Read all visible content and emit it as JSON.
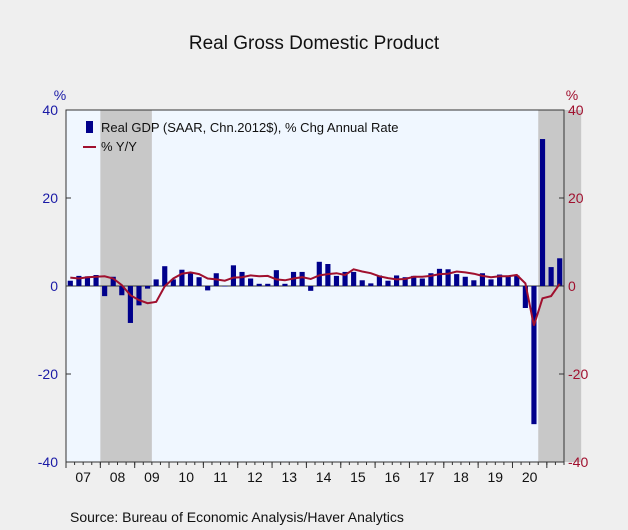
{
  "chart_data": {
    "type": "bar",
    "title": "Real Gross Domestic Product",
    "source": "Source:  Bureau of Economic Analysis/Haver Analytics",
    "left_unit": "%",
    "right_unit": "%",
    "ylim": [
      -40,
      40
    ],
    "yticks": [
      -40,
      -20,
      0,
      20,
      40
    ],
    "x_labels": [
      "07",
      "08",
      "09",
      "10",
      "11",
      "12",
      "13",
      "14",
      "15",
      "16",
      "17",
      "18",
      "19",
      "20"
    ],
    "recessions": [
      [
        4,
        10
      ],
      [
        55,
        60
      ]
    ],
    "colors": {
      "bar": "#00008b",
      "line": "#a0102e",
      "recession": "#c8c8c8",
      "plot_bg": "#f0f7ff"
    },
    "series": [
      {
        "name": "Real GDP (SAAR, Chn.2012$), % Chg Annual Rate",
        "type": "bar",
        "values": [
          1.2,
          2.3,
          2.2,
          2.5,
          -2.3,
          2.1,
          -2.1,
          -8.4,
          -4.4,
          -0.6,
          1.5,
          4.5,
          1.5,
          3.7,
          3.0,
          2.0,
          -1.0,
          2.9,
          -0.1,
          4.7,
          3.2,
          1.7,
          0.5,
          0.5,
          3.6,
          0.5,
          3.2,
          3.2,
          -1.1,
          5.5,
          5.0,
          2.3,
          3.2,
          3.2,
          1.3,
          0.6,
          2.4,
          1.2,
          2.4,
          2.0,
          2.3,
          1.7,
          2.9,
          3.9,
          3.8,
          2.7,
          2.1,
          1.3,
          2.9,
          1.5,
          2.6,
          2.4,
          2.4,
          -5.0,
          -31.4,
          33.4,
          4.3,
          6.3
        ]
      },
      {
        "name": "% Y/Y",
        "type": "line",
        "values": [
          1.9,
          1.7,
          2.0,
          2.1,
          2.2,
          1.7,
          0.2,
          -2.1,
          -3.2,
          -3.9,
          -3.6,
          -0.1,
          1.7,
          2.8,
          3.1,
          2.7,
          1.7,
          1.5,
          1.2,
          1.9,
          2.0,
          2.4,
          2.2,
          2.3,
          1.5,
          1.3,
          1.7,
          2.0,
          1.6,
          2.4,
          2.7,
          2.9,
          2.5,
          3.8,
          3.3,
          2.9,
          2.2,
          1.8,
          1.5,
          1.6,
          2.1,
          2.1,
          2.3,
          2.7,
          2.8,
          3.3,
          3.1,
          2.8,
          2.3,
          2.0,
          2.2,
          2.2,
          2.5,
          0.6,
          -9.0,
          -2.8,
          -2.3,
          0.5
        ]
      }
    ]
  }
}
